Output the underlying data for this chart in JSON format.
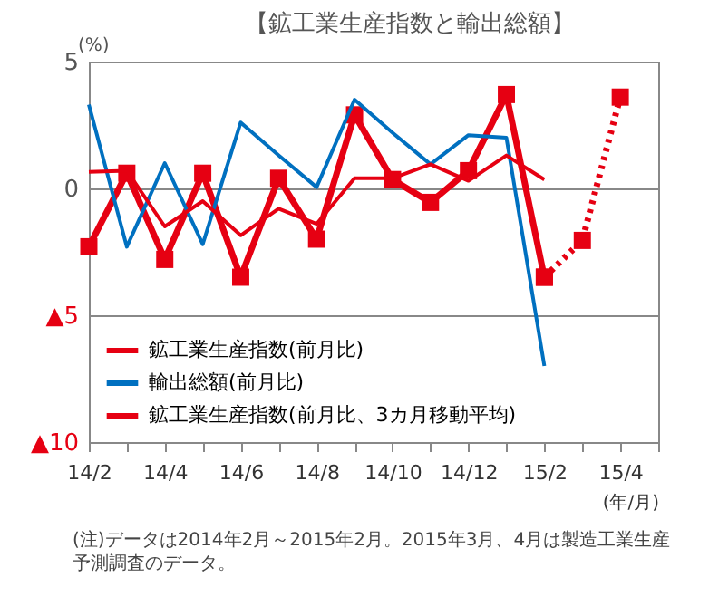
{
  "chart_data": {
    "type": "line",
    "title": "【鉱工業生産指数と輸出総額】",
    "ylabel": "(%)",
    "xlabel": "(年/月)",
    "annotations": [
      "(注)データは2014年2月～2015年2月。2015年3月、4月は製造工業生産予測調査のデータ。"
    ],
    "categories": [
      "14/2",
      null,
      "14/4",
      null,
      "14/6",
      null,
      "14/8",
      null,
      "14/10",
      null,
      "14/12",
      null,
      "15/2",
      null,
      "15/4",
      null
    ],
    "ylim": [
      -10,
      5
    ],
    "yticks": [
      {
        "value": 5,
        "label": "5"
      },
      {
        "value": 0,
        "label": "0"
      },
      {
        "value": -5,
        "label": "▲5"
      },
      {
        "value": -10,
        "label": "▲10"
      }
    ],
    "grid": "y",
    "legend": "bottom left",
    "series": [
      {
        "name": "鉱工業生産指数(前月比)",
        "color": "#e60012",
        "marker": "square",
        "line_style": "solid",
        "values": [
          -2.3,
          0.6,
          -2.8,
          0.6,
          -3.5,
          0.4,
          -2.0,
          2.9,
          0.35,
          -0.55,
          0.7,
          3.7,
          -3.5,
          null,
          null,
          null
        ]
      },
      {
        "name": "輸出総額(前月比)",
        "color": "#0070c0",
        "marker": "none",
        "line_style": "solid",
        "values": [
          3.3,
          -2.3,
          1.0,
          -2.2,
          2.6,
          1.3,
          0.05,
          3.5,
          2.2,
          0.95,
          2.1,
          2.0,
          -7.0,
          null,
          null,
          null
        ]
      },
      {
        "name": "鉱工業生産指数(前月比、3カ月移動平均)",
        "color": "#e60012",
        "marker": "none",
        "line_style": "solid",
        "values": [
          0.65,
          0.7,
          -1.5,
          -0.5,
          -1.85,
          -0.8,
          -1.4,
          0.4,
          0.4,
          0.95,
          0.3,
          1.3,
          0.35,
          null,
          null,
          null
        ]
      },
      {
        "color": "#e60012",
        "marker": "square",
        "line_style": "dotted",
        "values": [
          null,
          null,
          null,
          null,
          null,
          null,
          null,
          null,
          null,
          null,
          null,
          null,
          -3.5,
          -2.05,
          3.6,
          null
        ]
      }
    ]
  }
}
